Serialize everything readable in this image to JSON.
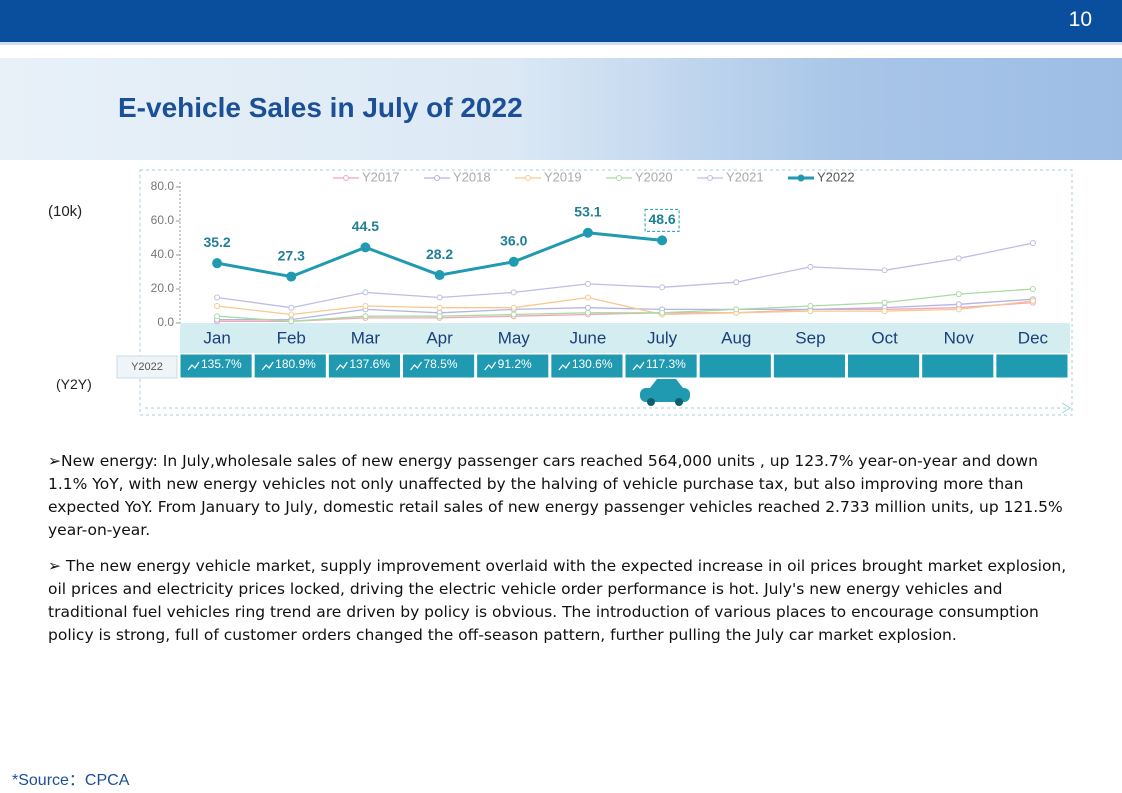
{
  "page_number": "10",
  "title": "E-vehicle Sales in July of 2022",
  "chart_data": {
    "type": "line",
    "y_unit_label": "(10k)",
    "categories": [
      "Jan",
      "Feb",
      "Mar",
      "Apr",
      "May",
      "June",
      "July",
      "Aug",
      "Sep",
      "Oct",
      "Nov",
      "Dec"
    ],
    "ylim": [
      0,
      80
    ],
    "yticks": [
      {
        "value": 0,
        "label": "0.0"
      },
      {
        "value": 20,
        "label": "20.0"
      },
      {
        "value": 40,
        "label": "40.0"
      },
      {
        "value": 60,
        "label": "60.0"
      },
      {
        "value": 80,
        "label": "80.0"
      }
    ],
    "series": [
      {
        "name": "Y2017",
        "color": "#f2a7b9",
        "values": [
          1,
          1,
          3,
          3,
          4,
          5,
          6,
          6,
          8,
          8,
          9,
          12
        ]
      },
      {
        "name": "Y2018",
        "color": "#b4b4e4",
        "values": [
          2,
          2,
          8,
          6,
          8,
          9,
          8,
          8,
          8,
          9,
          11,
          14
        ]
      },
      {
        "name": "Y2019",
        "color": "#f6c98e",
        "values": [
          10,
          5,
          10,
          9,
          9,
          15,
          5,
          6,
          7,
          7,
          8,
          13
        ]
      },
      {
        "name": "Y2020",
        "color": "#a9dba1",
        "values": [
          4,
          1,
          4,
          4,
          5,
          6,
          6,
          8,
          10,
          12,
          17,
          20
        ]
      },
      {
        "name": "Y2021",
        "color": "#bdbde6",
        "values": [
          15,
          9,
          18,
          15,
          18,
          23,
          21,
          24,
          33,
          31,
          38,
          47
        ]
      },
      {
        "name": "Y2022",
        "color": "#1f9ab1",
        "values": [
          35.2,
          27.3,
          44.5,
          28.2,
          36.0,
          53.1,
          48.6,
          null,
          null,
          null,
          null,
          null
        ],
        "value_labels": [
          "35.2",
          "27.3",
          "44.5",
          "28.2",
          "36.0",
          "53.1",
          "48.6",
          null,
          null,
          null,
          null,
          null
        ]
      }
    ],
    "yoy": {
      "unit_label": "(Y2Y)",
      "name": "Y2022",
      "values": [
        135.7,
        180.9,
        137.6,
        78.5,
        91.2,
        130.6,
        117.3
      ],
      "value_labels": [
        "135.7%",
        "180.9%",
        "137.6%",
        "78.5%",
        "91.2%",
        "130.6%",
        "117.3%"
      ]
    }
  },
  "paragraphs": [
    "➢New energy: In July,wholesale sales of new energy passenger cars reached 564,000 units , up 123.7% year-on-year and down 1.1% YoY, with new energy vehicles not only unaffected by the halving of vehicle purchase tax, but also improving more than expected YoY. From January to July, domestic retail sales of new energy passenger vehicles reached 2.733 million units, up 121.5% year-on-year.",
    "➢ The new energy vehicle market, supply improvement overlaid with the expected increase in oil prices brought market explosion, oil prices and electricity prices locked, driving the electric vehicle order performance is hot. July's new energy vehicles and traditional fuel vehicles ring trend are driven by policy is obvious. The introduction of various places to encourage consumption policy is strong, full of customer orders changed the off-season pattern, further pulling the July car market explosion."
  ],
  "source": "*Source：CPCA"
}
